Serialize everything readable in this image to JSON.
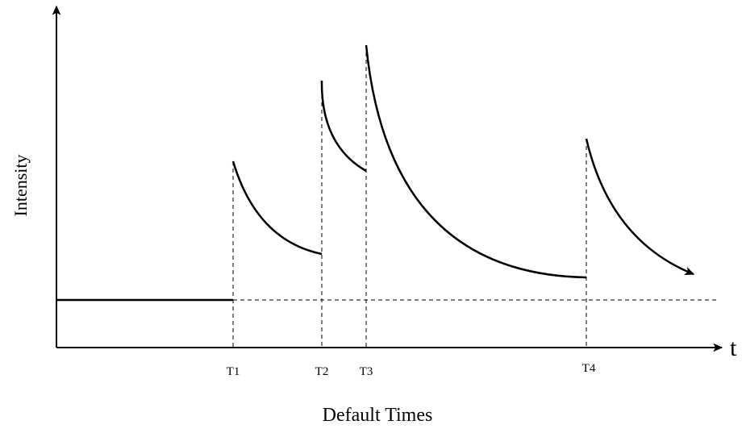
{
  "diagram": {
    "y_axis_label": "Intensity",
    "x_axis_label": "t",
    "caption": "Default Times",
    "events": [
      {
        "label": "T1"
      },
      {
        "label": "T2"
      },
      {
        "label": "T3"
      },
      {
        "label": "T4"
      }
    ]
  }
}
